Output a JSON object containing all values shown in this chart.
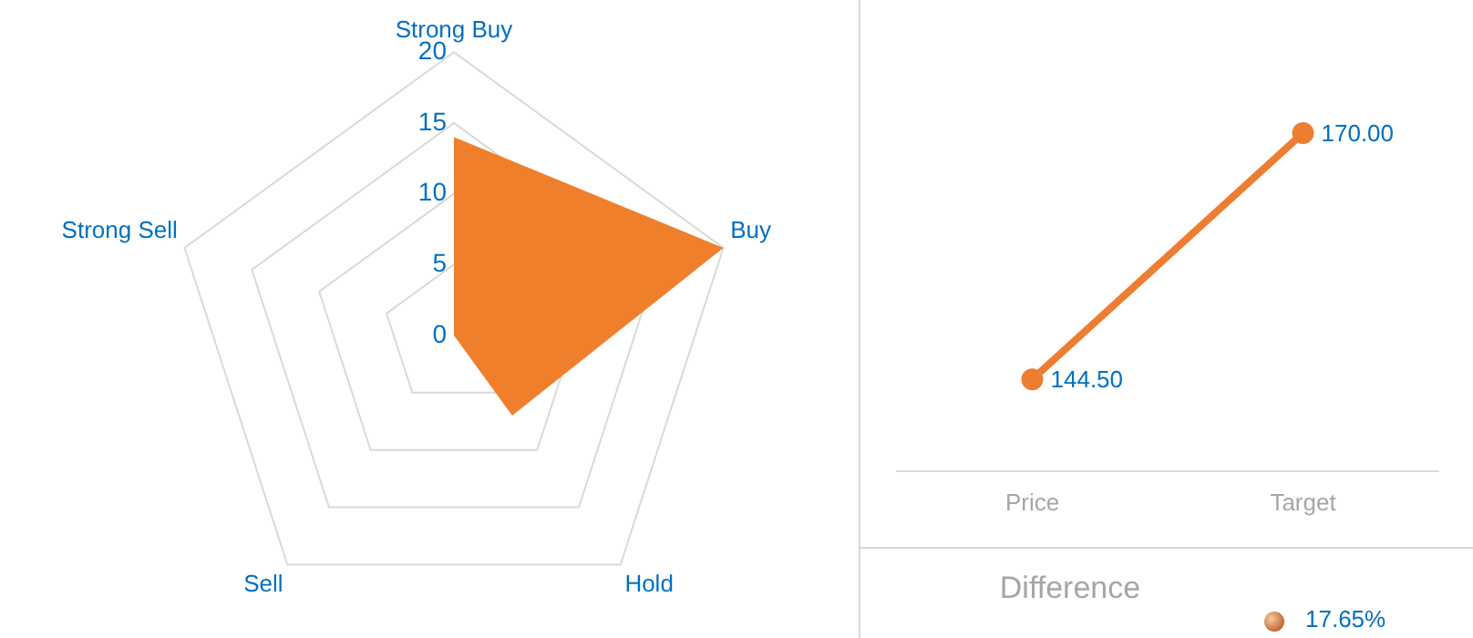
{
  "chart_data": [
    {
      "type": "radar",
      "categories": [
        "Strong Buy",
        "Buy",
        "Hold",
        "Sell",
        "Strong Sell"
      ],
      "ylim": [
        0,
        20
      ],
      "yticks": [
        0,
        5,
        10,
        15,
        20
      ],
      "grid": true,
      "legend": false,
      "series": [
        {
          "color": "#f07f2c",
          "values": [
            14,
            20,
            7,
            0,
            0
          ]
        }
      ]
    },
    {
      "type": "line",
      "categories": [
        "Price",
        "Target"
      ],
      "grid": false,
      "legend": false,
      "tick_labels": "x",
      "marker": "circle",
      "line_style": "solid",
      "series": [
        {
          "color": "#ed7d31",
          "values": [
            144.5,
            170
          ],
          "value_labels": [
            "144.50",
            "170.00"
          ]
        }
      ]
    },
    {
      "type": "other",
      "title": "Difference",
      "annotations": [
        "17.65%"
      ]
    }
  ]
}
